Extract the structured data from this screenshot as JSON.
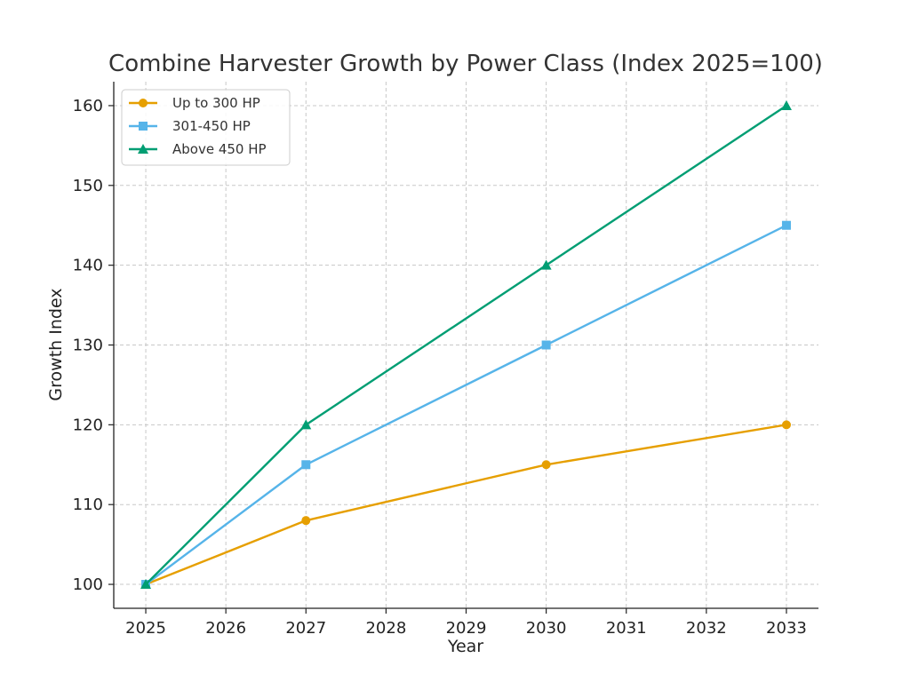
{
  "chart_data": {
    "type": "line",
    "title": "Combine Harvester Growth by Power Class (Index 2025=100)",
    "xlabel": "Year",
    "ylabel": "Growth Index",
    "x_ticks": [
      2025,
      2026,
      2027,
      2028,
      2029,
      2030,
      2031,
      2032,
      2033
    ],
    "y_ticks": [
      100,
      110,
      120,
      130,
      140,
      150,
      160
    ],
    "xlim": [
      2024.6,
      2033.4
    ],
    "ylim": [
      97,
      163
    ],
    "grid": true,
    "legend_position": "top-left",
    "series": [
      {
        "name": "Up to 300 HP",
        "color": "#E69F00",
        "marker": "circle",
        "x": [
          2025,
          2027,
          2030,
          2033
        ],
        "y": [
          100,
          108,
          115,
          120
        ]
      },
      {
        "name": "301-450 HP",
        "color": "#56B4E9",
        "marker": "square",
        "x": [
          2025,
          2027,
          2030,
          2033
        ],
        "y": [
          100,
          115,
          130,
          145
        ]
      },
      {
        "name": "Above 450 HP",
        "color": "#009E73",
        "marker": "triangle",
        "x": [
          2025,
          2027,
          2030,
          2033
        ],
        "y": [
          100,
          120,
          140,
          160
        ]
      }
    ]
  }
}
